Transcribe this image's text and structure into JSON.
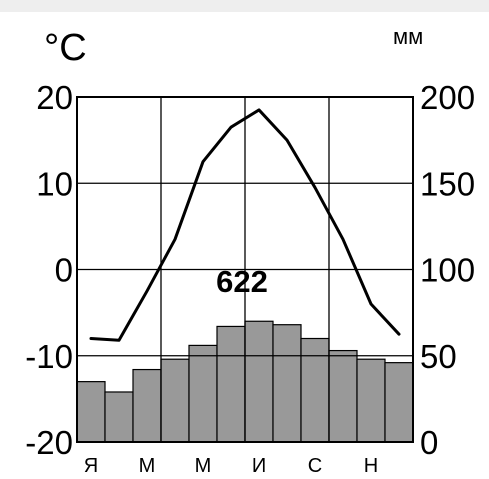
{
  "chart_data": {
    "type": "bar-line",
    "left_unit": "°C",
    "right_unit": "мм",
    "months": [
      "Я",
      "",
      "М",
      "",
      "М",
      "",
      "И",
      "",
      "С",
      "",
      "Н",
      ""
    ],
    "precip_total": "622",
    "left_ylim": [
      -20,
      20
    ],
    "right_ylim": [
      0,
      200
    ],
    "left_ticks": [
      "20",
      "10",
      "0",
      "-10",
      "-20"
    ],
    "right_ticks": [
      "200",
      "150",
      "100",
      "50",
      "0"
    ],
    "grid": true,
    "series": [
      {
        "kind": "line",
        "axis": "left",
        "values": [
          -8,
          -8.2,
          -2.5,
          3.5,
          12.5,
          16.5,
          18.5,
          15,
          9.5,
          3.5,
          -4,
          -7.5
        ]
      },
      {
        "kind": "bar",
        "axis": "right",
        "values": [
          35,
          29,
          42,
          48,
          56,
          67,
          70,
          68,
          60,
          53,
          48,
          46
        ]
      }
    ],
    "colors": {
      "bar_fill": "#999999",
      "bar_stroke": "#000000",
      "line": "#000000",
      "grid": "#000000"
    }
  }
}
